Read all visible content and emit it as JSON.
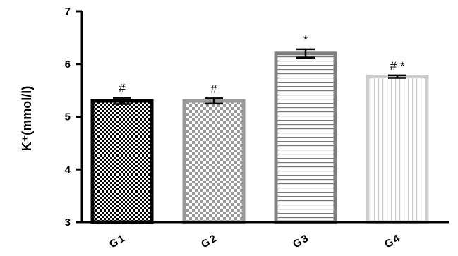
{
  "chart_data": {
    "type": "bar",
    "ylabel": "K⁺(mmol/l)",
    "ylim": [
      3,
      7
    ],
    "yticks": [
      "3",
      "4",
      "5",
      "6",
      "7"
    ],
    "categories": [
      "G1",
      "G2",
      "G3",
      "G4"
    ],
    "values": [
      5.3,
      5.3,
      6.2,
      5.76
    ],
    "errors": [
      0.06,
      0.05,
      0.08,
      0.025
    ],
    "annotations": [
      "#",
      "#",
      "*",
      "# *"
    ],
    "bar_styles": [
      {
        "pattern": "fine-checkerboard",
        "color": "#000000"
      },
      {
        "pattern": "checkerboard",
        "color": "#999999"
      },
      {
        "pattern": "horizontal-lines",
        "color": "#808080"
      },
      {
        "pattern": "vertical-lines",
        "color": "#cccccc"
      }
    ],
    "grid": false,
    "legend": "none"
  }
}
